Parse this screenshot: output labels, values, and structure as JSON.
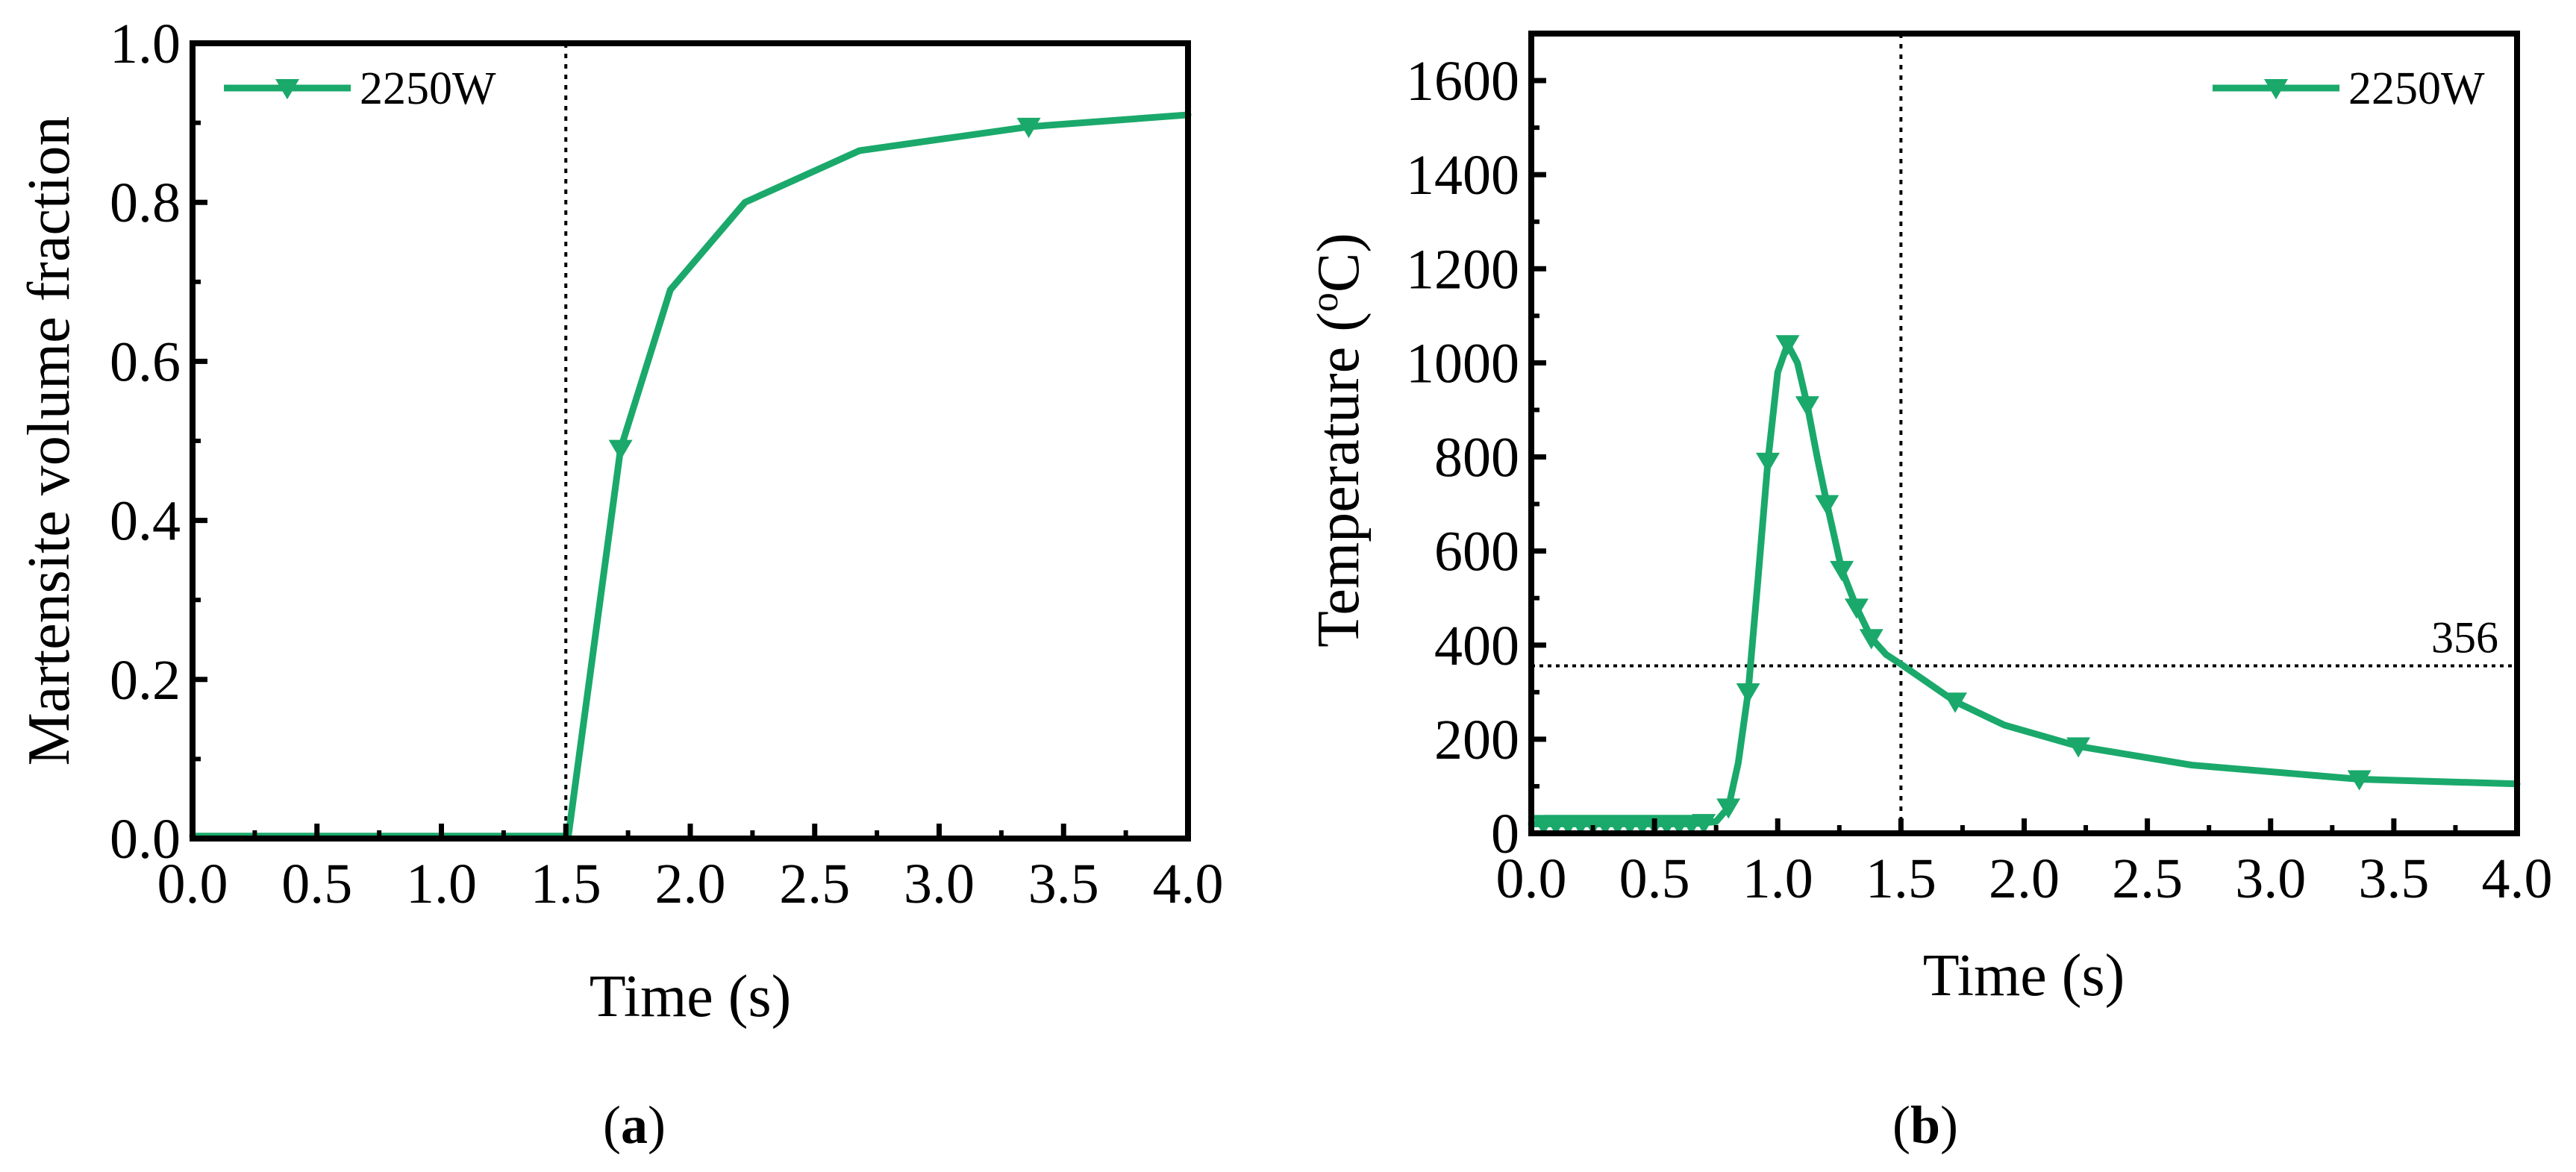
{
  "chart_data": [
    {
      "type": "line",
      "panel_label": "a",
      "title": "",
      "xlabel": "Time (s)",
      "ylabel": "Martensite volume fraction",
      "xlim": [
        0,
        4
      ],
      "ylim": [
        0,
        1
      ],
      "xticks": [
        "0.0",
        "0.5",
        "1.0",
        "1.5",
        "2.0",
        "2.5",
        "3.0",
        "3.5",
        "4.0"
      ],
      "xtick_values": [
        0,
        0.5,
        1,
        1.5,
        2,
        2.5,
        3,
        3.5,
        4
      ],
      "yticks": [
        "0.0",
        "0.2",
        "0.4",
        "0.6",
        "0.8",
        "1.0"
      ],
      "ytick_values": [
        0,
        0.2,
        0.4,
        0.6,
        0.8,
        1.0
      ],
      "legend_position": "top-left",
      "vline": {
        "x": 1.5,
        "style": "dotted"
      },
      "series": [
        {
          "name": "2250W",
          "color": "#1aa96b",
          "marker": "triangle-down",
          "x": [
            0,
            0.1,
            0.25,
            0.5,
            0.75,
            1.0,
            1.25,
            1.4,
            1.51,
            1.72,
            1.92,
            2.22,
            2.68,
            3.36,
            4.0
          ],
          "y": [
            0.003,
            0.003,
            0.003,
            0.003,
            0.003,
            0.003,
            0.003,
            0.003,
            0.003,
            0.49,
            0.69,
            0.8,
            0.865,
            0.895,
            0.91
          ],
          "marker_x": [
            1.72,
            3.36
          ]
        }
      ]
    },
    {
      "type": "line",
      "panel_label": "b",
      "title": "",
      "xlabel": "Time (s)",
      "ylabel_prefix": "Temperature (",
      "ylabel_sup": "o",
      "ylabel_suffix": "C)",
      "xlim": [
        0,
        4
      ],
      "ylim": [
        0,
        1700
      ],
      "xticks": [
        "0.0",
        "0.5",
        "1.0",
        "1.5",
        "2.0",
        "2.5",
        "3.0",
        "3.5",
        "4.0"
      ],
      "xtick_values": [
        0,
        0.5,
        1,
        1.5,
        2,
        2.5,
        3,
        3.5,
        4
      ],
      "yticks": [
        "0",
        "200",
        "400",
        "600",
        "800",
        "1000",
        "1200",
        "1400",
        "1600"
      ],
      "ytick_values": [
        0,
        200,
        400,
        600,
        800,
        1000,
        1200,
        1400,
        1600
      ],
      "legend_position": "top-right",
      "vline": {
        "x": 1.5,
        "style": "dotted"
      },
      "hline": {
        "y": 356,
        "style": "dotted",
        "label": "356"
      },
      "series": [
        {
          "name": "2250W",
          "color": "#1aa96b",
          "marker": "triangle-down",
          "x": [
            0,
            0.05,
            0.1,
            0.15,
            0.2,
            0.25,
            0.3,
            0.35,
            0.4,
            0.45,
            0.5,
            0.55,
            0.6,
            0.65,
            0.7,
            0.75,
            0.8,
            0.84,
            0.88,
            0.92,
            0.96,
            1.0,
            1.04,
            1.08,
            1.12,
            1.16,
            1.2,
            1.26,
            1.32,
            1.38,
            1.44,
            1.51,
            1.72,
            1.92,
            2.22,
            2.68,
            3.36,
            4.0
          ],
          "y": [
            20,
            20,
            20,
            20,
            20,
            20,
            20,
            20,
            20,
            20,
            20,
            20,
            20,
            20,
            22,
            25,
            55,
            150,
            300,
            540,
            790,
            980,
            1040,
            1000,
            910,
            800,
            700,
            560,
            480,
            415,
            380,
            356,
            280,
            230,
            185,
            145,
            115,
            105
          ],
          "marker_x": [
            0.05,
            0.1,
            0.15,
            0.2,
            0.25,
            0.3,
            0.35,
            0.4,
            0.45,
            0.5,
            0.55,
            0.6,
            0.65,
            0.7,
            0.8,
            0.88,
            0.96,
            1.04,
            1.12,
            1.2,
            1.26,
            1.32,
            1.38,
            1.72,
            2.22,
            3.36
          ]
        }
      ]
    }
  ]
}
